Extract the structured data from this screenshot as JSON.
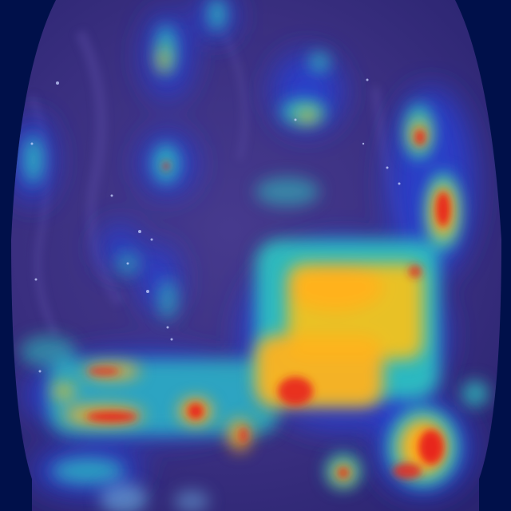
{
  "image": {
    "kind": "endoscopy-frame-with-attention-heatmap-overlay",
    "colormap": "jet",
    "colors": {
      "background": "#00104a",
      "tissue_tint": "#3b2e82",
      "low_activation": "#2a3cc8",
      "mid_activation": "#2ec7c0",
      "high_activation": "#ffb21e",
      "peak_activation": "#e8261f"
    }
  }
}
